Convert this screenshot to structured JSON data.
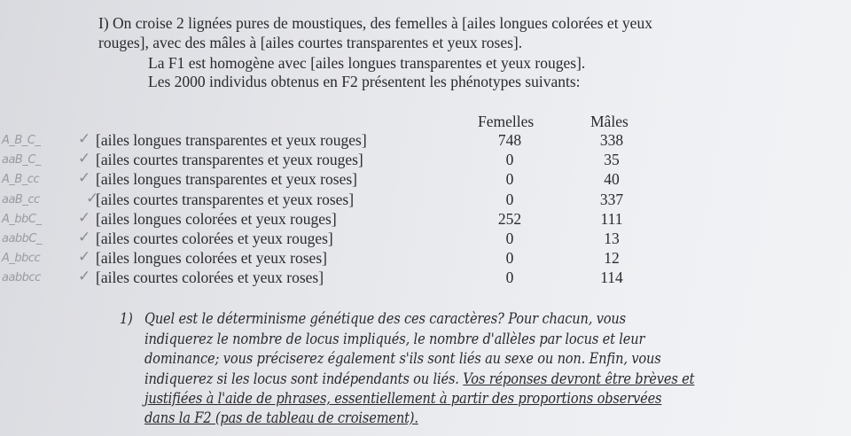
{
  "intro": {
    "line1": "I) On croise 2 lignées pures de moustiques, des femelles à [ailes longues colorées et yeux",
    "line2": "rouges], avec des mâles à [ailes courtes transparentes et yeux roses].",
    "line3": "La F1 est homogène avec [ailes longues transparentes et yeux rouges].",
    "line4": "Les 2000 individus obtenus en F2 présentent les phénotypes suivants:"
  },
  "table": {
    "headers": [
      "Femelles",
      "Mâles"
    ],
    "rows": [
      {
        "note": "A_B_C_",
        "phenotype": "[ailes longues transparentes et yeux rouges]",
        "femelles": "748",
        "males": "338"
      },
      {
        "note": "aaB_C_",
        "phenotype": "[ailes courtes transparentes et yeux rouges]",
        "femelles": "0",
        "males": "35"
      },
      {
        "note": "A_B_cc",
        "phenotype": "[ailes longues transparentes et yeux roses]",
        "femelles": "0",
        "males": "40"
      },
      {
        "note": "aaB_cc",
        "phenotype": "[ailes courtes transparentes et yeux roses]",
        "femelles": "0",
        "males": "337"
      },
      {
        "note": "A_bbC_",
        "phenotype": "[ailes longues colorées et yeux rouges]",
        "femelles": "252",
        "males": "111"
      },
      {
        "note": "aabbC_",
        "phenotype": "[ailes courtes colorées et yeux rouges]",
        "femelles": "0",
        "males": "13"
      },
      {
        "note": "A_bbcc",
        "phenotype": "[ailes longues colorées et yeux roses]",
        "femelles": "0",
        "males": "12"
      },
      {
        "note": "aabbcc",
        "phenotype": "[ailes courtes colorées et yeux roses]",
        "femelles": "0",
        "males": "114"
      }
    ],
    "check_mark": "✓"
  },
  "question": {
    "number": "1)",
    "line1": "Quel est le déterminisme génétique des ces caractères? Pour chacun, vous",
    "line2": "indiquerez le nombre de locus impliqués, le nombre d'allèles par locus et leur",
    "line3": "dominance; vous préciserez également s'ils sont liés au sexe ou non. Enfin, vous",
    "line4a": "indiquerez si les locus sont indépendants ou liés. ",
    "line4b": "Vos réponses devront être brèves et",
    "line5": "justifiées à l'aide de phrases, essentiellement à partir des proportions observées",
    "line6": "dans la F2 (pas de tableau de croisement)."
  }
}
